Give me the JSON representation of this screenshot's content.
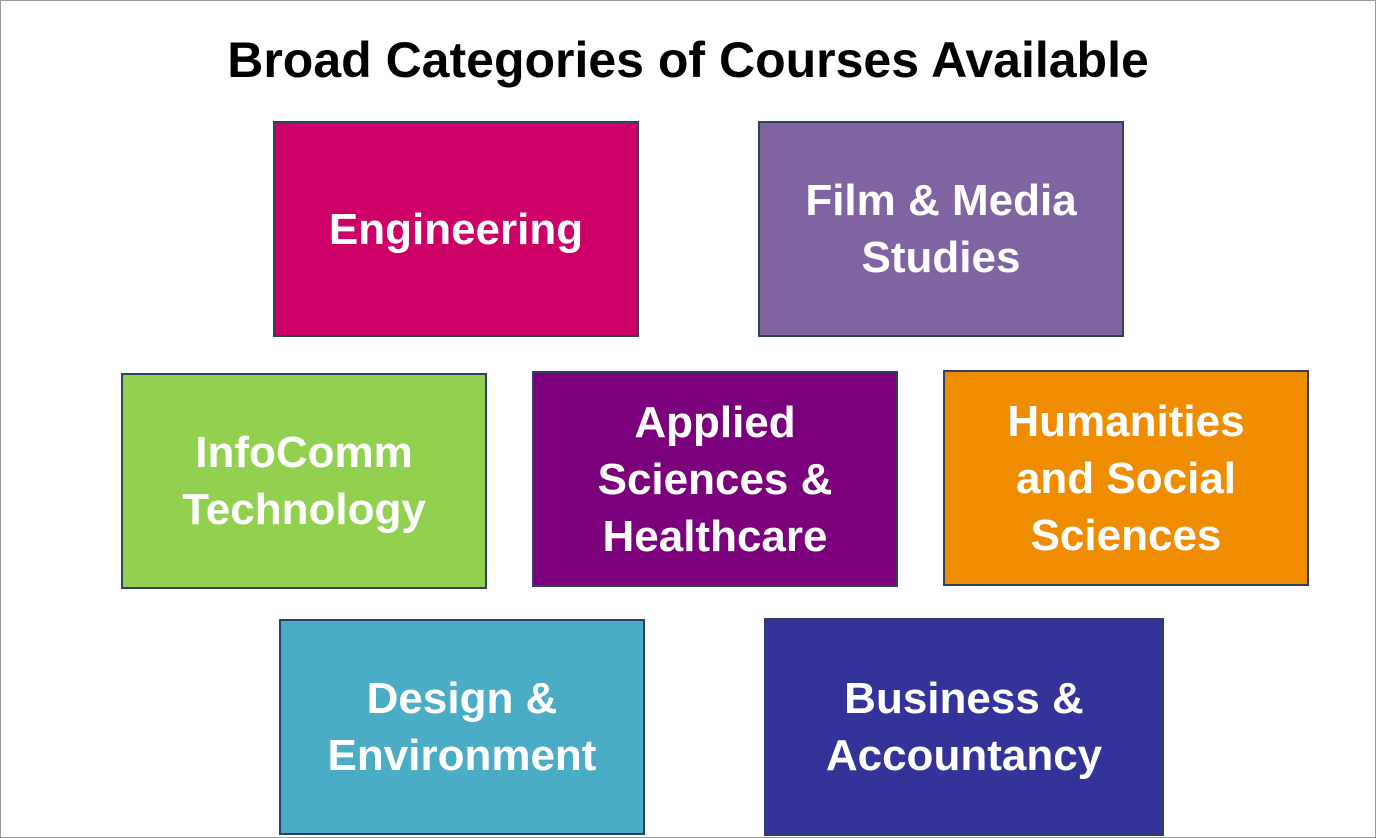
{
  "title": "Broad Categories of Courses Available",
  "categories": [
    {
      "label": "Engineering",
      "color": "#cc0066"
    },
    {
      "label": "Film & Media\nStudies",
      "color": "#8064a2"
    },
    {
      "label": "InfoComm\nTechnology",
      "color": "#92d050"
    },
    {
      "label": "Applied\nSciences &\nHealthcare",
      "color": "#7b007b"
    },
    {
      "label": "Humanities\nand Social\nSciences",
      "color": "#f08c00"
    },
    {
      "label": "Design &\nEnvironment",
      "color": "#4bacc6"
    },
    {
      "label": "Business &\nAccountancy",
      "color": "#333399"
    }
  ]
}
